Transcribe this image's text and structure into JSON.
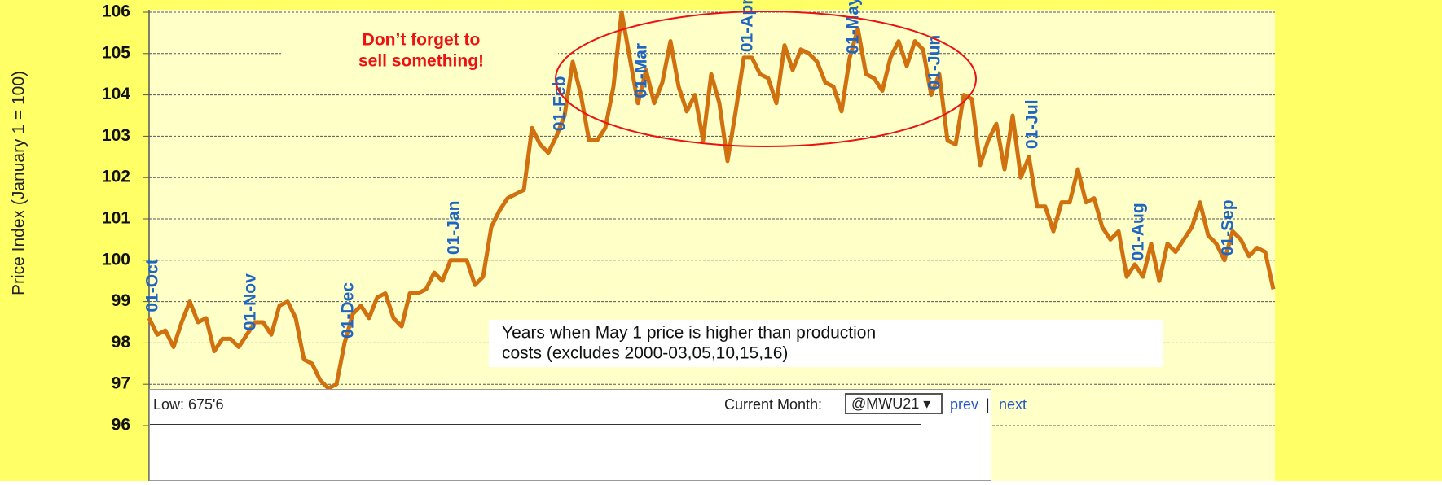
{
  "chart_data": {
    "type": "line",
    "y_label": "Price Index (January 1 = 100)",
    "ylim": [
      96,
      106
    ],
    "yticks": [
      96,
      97,
      98,
      99,
      100,
      101,
      102,
      103,
      104,
      105,
      106
    ],
    "grid": true,
    "categories": [
      "01-Oct",
      null,
      null,
      null,
      null,
      null,
      null,
      null,
      null,
      null,
      null,
      null,
      "01-Nov",
      null,
      null,
      null,
      null,
      null,
      null,
      null,
      null,
      null,
      null,
      null,
      "01-Dec",
      null,
      null,
      null,
      null,
      null,
      null,
      null,
      null,
      null,
      null,
      null,
      null,
      "01-Jan",
      null,
      null,
      null,
      null,
      null,
      null,
      null,
      null,
      null,
      null,
      null,
      null,
      "01-Feb",
      null,
      null,
      null,
      null,
      null,
      null,
      null,
      null,
      null,
      "01-Mar",
      null,
      null,
      null,
      null,
      null,
      null,
      null,
      null,
      null,
      null,
      null,
      null,
      "01-Apr",
      null,
      null,
      null,
      null,
      null,
      null,
      null,
      null,
      null,
      null,
      null,
      null,
      "01-May",
      null,
      null,
      null,
      null,
      null,
      null,
      null,
      null,
      null,
      "01-Jun",
      null,
      null,
      null,
      null,
      null,
      null,
      null,
      null,
      null,
      null,
      null,
      "01-Jul",
      null,
      null,
      null,
      null,
      null,
      null,
      null,
      null,
      null,
      null,
      null,
      null,
      "01-Aug",
      null,
      null,
      null,
      null,
      null,
      null,
      null,
      null,
      null,
      null,
      "01-Sep",
      null,
      null,
      null,
      null,
      null,
      null
    ],
    "series": [
      {
        "color": "#d0700e",
        "values": [
          98.6,
          98.2,
          98.3,
          97.9,
          98.5,
          99.0,
          98.5,
          98.6,
          97.8,
          98.1,
          98.1,
          97.9,
          98.2,
          98.5,
          98.5,
          98.2,
          98.9,
          99.0,
          98.6,
          97.6,
          97.5,
          97.1,
          96.9,
          97.0,
          98.0,
          98.7,
          98.9,
          98.6,
          99.1,
          99.2,
          98.6,
          98.4,
          99.2,
          99.2,
          99.3,
          99.7,
          99.5,
          100.0,
          100.0,
          100.0,
          99.4,
          99.6,
          100.8,
          101.2,
          101.5,
          101.6,
          101.7,
          103.2,
          102.8,
          102.6,
          103.0,
          103.5,
          104.8,
          104.0,
          102.9,
          102.9,
          103.2,
          104.2,
          106.0,
          104.9,
          103.8,
          104.6,
          103.8,
          104.3,
          105.3,
          104.2,
          103.6,
          104.0,
          102.9,
          104.5,
          103.8,
          102.4,
          103.6,
          104.9,
          104.9,
          104.5,
          104.4,
          103.8,
          105.2,
          104.6,
          105.1,
          105.0,
          104.8,
          104.3,
          104.2,
          103.6,
          104.9,
          105.6,
          104.5,
          104.4,
          104.1,
          104.9,
          105.3,
          104.7,
          105.3,
          105.1,
          104.0,
          104.5,
          102.9,
          102.8,
          104.0,
          103.9,
          102.3,
          102.9,
          103.3,
          102.2,
          103.5,
          102.0,
          102.5,
          101.3,
          101.3,
          100.7,
          101.4,
          101.4,
          102.2,
          101.4,
          101.5,
          100.8,
          100.5,
          100.7,
          99.6,
          99.9,
          99.6,
          100.4,
          99.5,
          100.4,
          100.2,
          100.5,
          100.8,
          101.4,
          100.6,
          100.4,
          100.0,
          100.7,
          100.5,
          100.1,
          100.3,
          100.2,
          99.3
        ]
      }
    ],
    "annotations": [
      {
        "text": [
          "Don’t forget to",
          "sell something!"
        ],
        "color": "#ee1111"
      },
      {
        "text": [
          "Years when May 1 price is higher than production",
          "costs (excludes 2000-03,05,10,15,16)"
        ],
        "color": "#111111"
      }
    ]
  },
  "panel": {
    "low": "Low: 675'6",
    "current_month": "Current Month:",
    "select": "@MWU21",
    "prev": "prev",
    "sep": "|",
    "next": "next"
  }
}
